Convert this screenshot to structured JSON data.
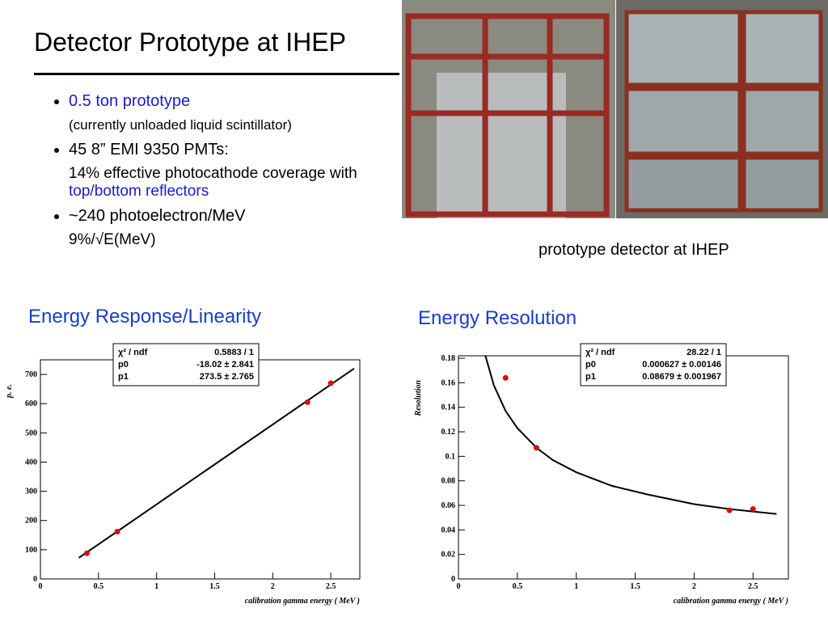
{
  "slide": {
    "title": "Detector Prototype at IHEP",
    "bullets": [
      {
        "text": "0.5 ton prototype",
        "note": "(currently unloaded liquid scintillator)"
      },
      {
        "text": "45 8” EMI 9350  PMTs:",
        "note": "14% effective photocathode coverage with ",
        "highlight": "top/bottom reflectors"
      },
      {
        "text": "~240 photoelectron/MeV",
        "note": "9%/√E(MeV)"
      }
    ],
    "caption": "prototype detector at IHEP"
  },
  "chart_data": [
    {
      "type": "scatter",
      "title": "Energy Response/Linearity",
      "xlabel": "calibration gamma energy ( MeV )",
      "ylabel": "p. e.",
      "xlim": [
        0,
        2.75
      ],
      "xticks": [
        0,
        0.5,
        1,
        1.5,
        2,
        2.5
      ],
      "ylim": [
        0,
        750
      ],
      "yticks": [
        0,
        100,
        200,
        300,
        400,
        500,
        600,
        700
      ],
      "points": {
        "color": "#d01010",
        "x": [
          0.4,
          0.662,
          2.3,
          2.5
        ],
        "values": [
          88,
          162,
          605,
          670
        ]
      },
      "fit": {
        "color": "#000000",
        "x": [
          0.33,
          2.7
        ],
        "values": [
          72,
          720
        ]
      },
      "stats": [
        [
          "χ² / ndf",
          "0.5883 / 1"
        ],
        [
          "p0",
          "-18.02 ± 2.841"
        ],
        [
          "p1",
          "273.5 ± 2.765"
        ]
      ]
    },
    {
      "type": "scatter",
      "title": "Energy Resolution",
      "xlabel": "calibration gamma energy ( MeV )",
      "ylabel": "Resolution",
      "xlim": [
        0,
        2.8
      ],
      "xticks": [
        0,
        0.5,
        1,
        1.5,
        2,
        2.5
      ],
      "ylim": [
        0,
        0.182
      ],
      "yticks": [
        0,
        0.02,
        0.04,
        0.06,
        0.08,
        0.1,
        0.12,
        0.14,
        0.16,
        0.18
      ],
      "points": {
        "color": "#d01010",
        "x": [
          0.4,
          0.662,
          2.3,
          2.5
        ],
        "values": [
          0.164,
          0.107,
          0.056,
          0.057
        ]
      },
      "fit": {
        "color": "#000000",
        "x": [
          0.22,
          0.3,
          0.4,
          0.5,
          0.662,
          0.8,
          1,
          1.3,
          1.6,
          2,
          2.3,
          2.5,
          2.7
        ],
        "values": [
          0.185,
          0.158,
          0.137,
          0.123,
          0.107,
          0.097,
          0.087,
          0.076,
          0.069,
          0.061,
          0.057,
          0.055,
          0.053
        ]
      },
      "stats": [
        [
          "χ² / ndf",
          "28.22 / 1"
        ],
        [
          "p0",
          "0.000627 ± 0.00146"
        ],
        [
          "p1",
          "0.08679 ± 0.001967"
        ]
      ]
    }
  ]
}
